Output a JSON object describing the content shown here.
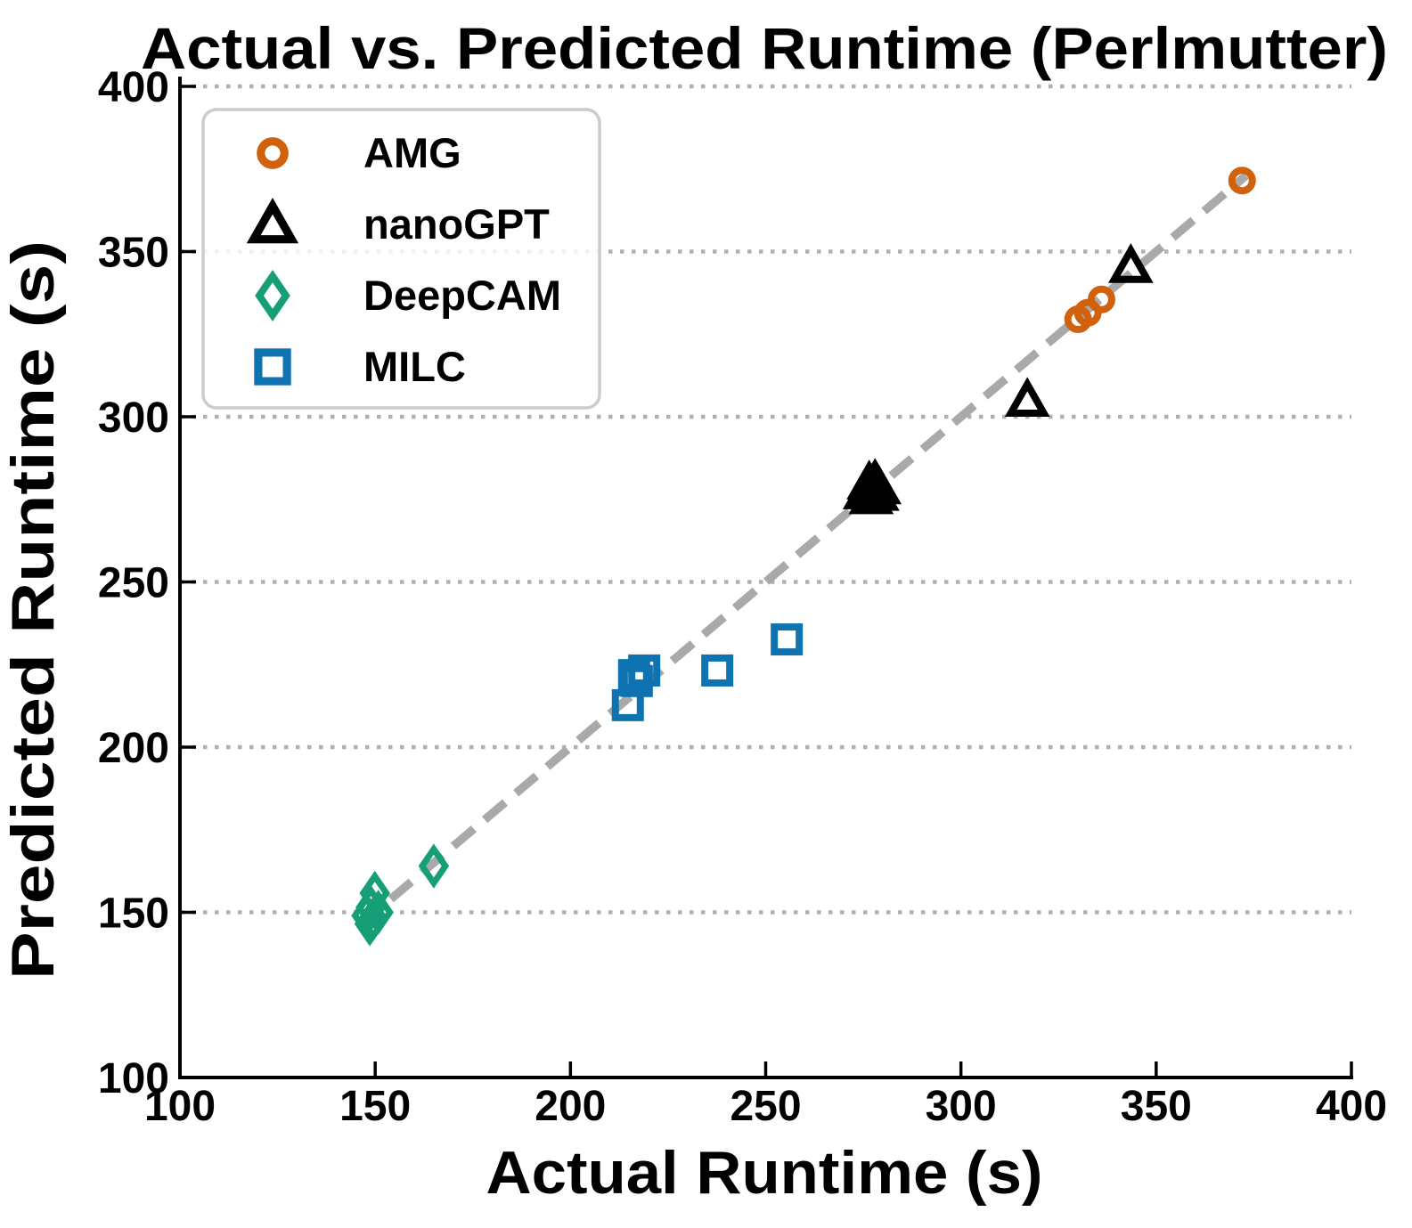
{
  "chart_data": {
    "type": "scatter",
    "title": "Actual vs. Predicted Runtime (Perlmutter)",
    "xlabel": "Actual Runtime (s)",
    "ylabel": "Predicted Runtime (s)",
    "xlim": [
      100,
      400
    ],
    "ylim": [
      100,
      400
    ],
    "xticks": [
      100,
      150,
      200,
      250,
      300,
      350,
      400
    ],
    "yticks": [
      100,
      150,
      200,
      250,
      300,
      350,
      400
    ],
    "grid": "horizontal dotted lines at y ticks",
    "gridline_color": "#b0b0b0",
    "legend_position": "upper-left",
    "legend_border_color": "#cccccc",
    "identity_line": {
      "description": "dashed y = x reference line",
      "from_xy": [
        146,
        146
      ],
      "to_xy": [
        373,
        373
      ],
      "color": "#a9a9a9",
      "style": "dashed"
    },
    "series": [
      {
        "name": "AMG",
        "marker": "circle",
        "color": "#d2610c",
        "points": [
          [
            330.0,
            329.5
          ],
          [
            332.5,
            331.5
          ],
          [
            336.0,
            335.5
          ],
          [
            372.0,
            371.5
          ]
        ]
      },
      {
        "name": "nanoGPT",
        "marker": "triangle",
        "color": "#000000",
        "points": [
          [
            275.5,
            277.0
          ],
          [
            276.5,
            280.0
          ],
          [
            277.0,
            275.5
          ],
          [
            277.5,
            278.0
          ],
          [
            278.0,
            280.5
          ],
          [
            278.5,
            276.5
          ],
          [
            279.0,
            278.5
          ],
          [
            317.0,
            305.0
          ],
          [
            343.5,
            345.5
          ]
        ]
      },
      {
        "name": "DeepCAM",
        "marker": "diamond",
        "color": "#169e77",
        "points": [
          [
            148.6,
            146.5
          ],
          [
            147.8,
            149.0
          ],
          [
            149.5,
            148.0
          ],
          [
            150.8,
            150.0
          ],
          [
            148.9,
            151.5
          ],
          [
            149.9,
            155.8
          ],
          [
            165.0,
            164.0
          ]
        ]
      },
      {
        "name": "MILC",
        "marker": "square",
        "color": "#0f73b2",
        "points": [
          [
            214.7,
            212.7
          ],
          [
            216.3,
            221.8
          ],
          [
            217.0,
            220.0
          ],
          [
            218.9,
            223.2
          ],
          [
            237.6,
            223.2
          ],
          [
            255.4,
            232.6
          ]
        ]
      }
    ]
  }
}
